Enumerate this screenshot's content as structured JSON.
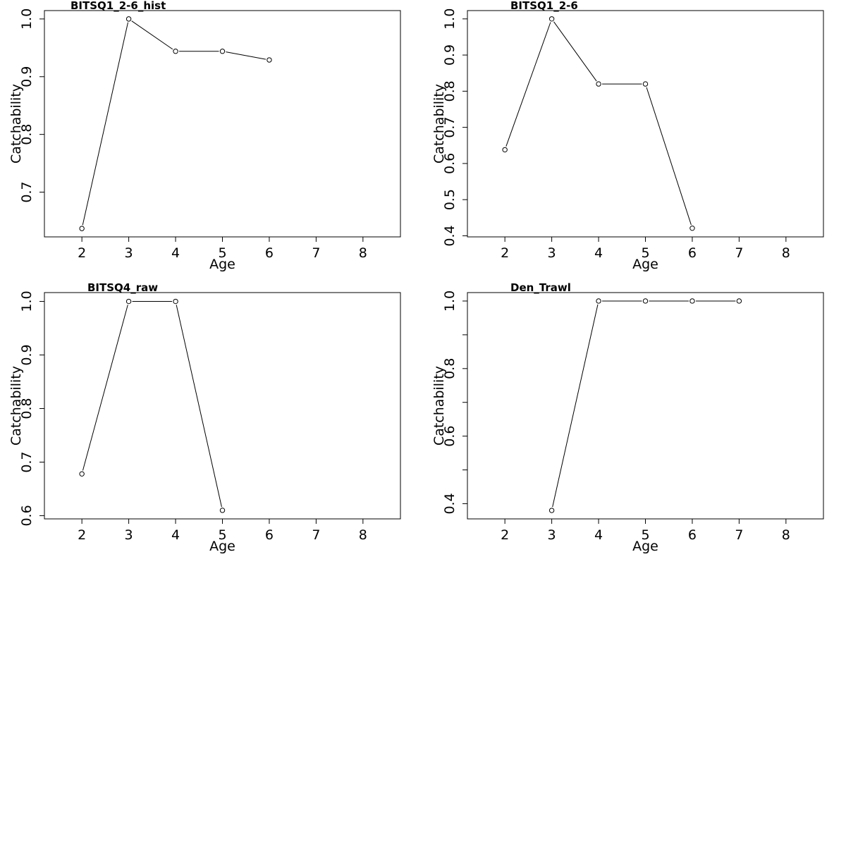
{
  "chart_data": [
    {
      "type": "line",
      "title": "BITSQ1_2-6_hist",
      "xlabel": "Age",
      "ylabel": "Catchability",
      "xlim": [
        1.2,
        8.8
      ],
      "ylim": [
        0.6225,
        1.0145
      ],
      "xticks": [
        2,
        3,
        4,
        5,
        6,
        7,
        8
      ],
      "yticks": [
        0.7,
        0.8,
        0.9,
        1.0
      ],
      "ytick_labels": [
        "0.7",
        "0.8",
        "0.9",
        "1.0"
      ],
      "minor_yticks": [],
      "x": [
        2,
        3,
        4,
        5,
        6
      ],
      "values": [
        0.637,
        1.0,
        0.944,
        0.944,
        0.929
      ]
    },
    {
      "type": "line",
      "title": "BITSQ1_2-6",
      "xlabel": "Age",
      "ylabel": "Catchability",
      "xlim": [
        1.2,
        8.8
      ],
      "ylim": [
        0.397,
        1.023
      ],
      "xticks": [
        2,
        3,
        4,
        5,
        6,
        7,
        8
      ],
      "yticks": [
        0.4,
        0.5,
        0.6,
        0.7,
        0.8,
        0.9,
        1.0
      ],
      "ytick_labels": [
        "0.4",
        "0.5",
        "0.6",
        "0.7",
        "0.8",
        "0.9",
        "1.0"
      ],
      "minor_yticks": [],
      "x": [
        2,
        3,
        4,
        5,
        6
      ],
      "values": [
        0.638,
        1.0,
        0.82,
        0.82,
        0.421
      ]
    },
    {
      "type": "line",
      "title": "BITSQ4_raw",
      "xlabel": "Age",
      "ylabel": "Catchability",
      "xlim": [
        1.2,
        8.8
      ],
      "ylim": [
        0.594,
        1.0165
      ],
      "xticks": [
        2,
        3,
        4,
        5,
        6,
        7,
        8
      ],
      "yticks": [
        0.6,
        0.7,
        0.8,
        0.9,
        1.0
      ],
      "ytick_labels": [
        "0.6",
        "0.7",
        "0.8",
        "0.9",
        "1.0"
      ],
      "minor_yticks": [],
      "x": [
        2,
        3,
        4,
        5
      ],
      "values": [
        0.678,
        1.0,
        1.0,
        0.61
      ]
    },
    {
      "type": "line",
      "title": "Den_Trawl",
      "xlabel": "Age",
      "ylabel": "Catchability",
      "xlim": [
        1.2,
        8.8
      ],
      "ylim": [
        0.355,
        1.025
      ],
      "xticks": [
        2,
        3,
        4,
        5,
        6,
        7,
        8
      ],
      "yticks": [
        0.4,
        0.6,
        0.8,
        1.0
      ],
      "ytick_labels": [
        "0.4",
        "0.6",
        "0.8",
        "1.0"
      ],
      "minor_yticks": [
        0.5,
        0.7,
        0.9
      ],
      "x": [
        3,
        4,
        5,
        6,
        7
      ],
      "values": [
        0.38,
        1.0,
        1.0,
        1.0,
        1.0
      ]
    }
  ]
}
